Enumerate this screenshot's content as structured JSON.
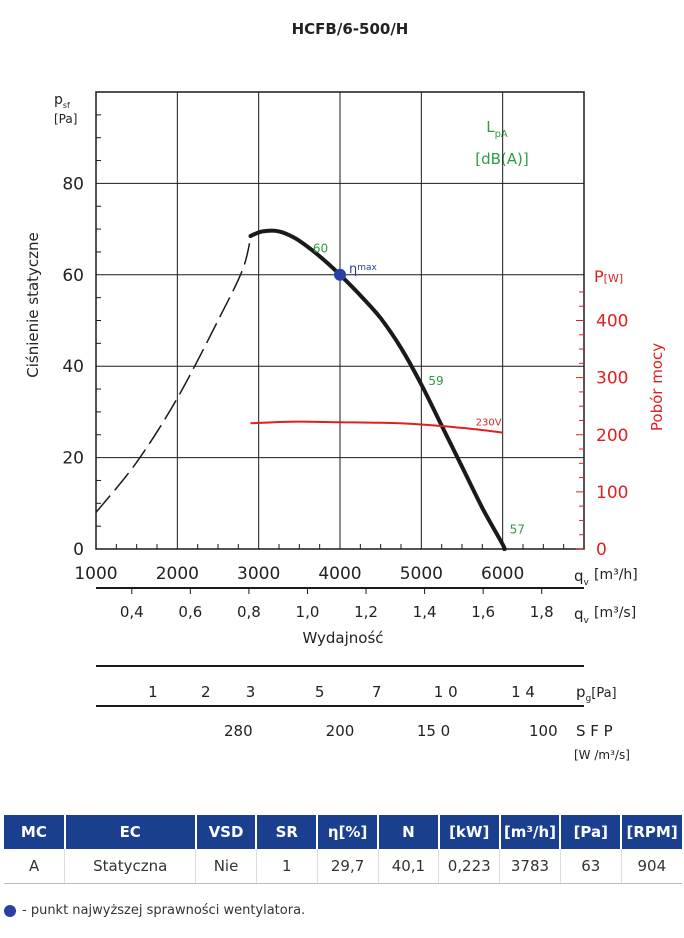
{
  "chart_data": {
    "type": "line",
    "title": "HCFB/6-500/H",
    "ylabel": "Ciśnienie statyczne",
    "y_symbol": "p",
    "y_symbol_sub": "sf",
    "y_unit": "[Pa]",
    "y_right_label": "Pobór mocy",
    "y_right_symbol": "P",
    "y_right_unit": "[W]",
    "xlabel": "Wydajność",
    "x_symbol": "q",
    "x_symbol_sub": "v",
    "x_unit": "[m³/h]",
    "x_unit2": "[m³/s]",
    "xlim": [
      1000,
      7000
    ],
    "ylim": [
      0,
      100
    ],
    "y2lim": [
      0,
      800
    ],
    "x_ticks": [
      1000,
      2000,
      3000,
      4000,
      5000,
      6000
    ],
    "y_ticks": [
      0,
      20,
      40,
      60,
      80
    ],
    "y2_ticks": [
      0,
      100,
      200,
      300,
      400
    ],
    "x2_ticks": [
      "0,4",
      "0,6",
      "0,8",
      "1,0",
      "1,2",
      "1,4",
      "1,6",
      "1,8"
    ],
    "x2_values": [
      0.4,
      0.6,
      0.8,
      1.0,
      1.2,
      1.4,
      1.6,
      1.8
    ],
    "lpa_label": "L",
    "lpa_sub": "pA",
    "lpa_unit": "[dB(A)]",
    "pressure_curve_stalled": {
      "x": [
        1000,
        1500,
        2000,
        2500,
        2800,
        2900
      ],
      "y": [
        8,
        19,
        33,
        50,
        61,
        68
      ]
    },
    "pressure_curve": {
      "x": [
        2900,
        3050,
        3250,
        3450,
        3650,
        3850,
        4000,
        4250,
        4500,
        4750,
        5000,
        5250,
        5500,
        5750,
        6000,
        6020
      ],
      "y": [
        68.5,
        69.5,
        69.5,
        68,
        65.5,
        62.5,
        60,
        55.5,
        50.5,
        44,
        36,
        27,
        18,
        9,
        1,
        0
      ]
    },
    "power_curve": {
      "label": "230V",
      "x": [
        2900,
        3200,
        3500,
        4000,
        4500,
        5000,
        5500,
        6000
      ],
      "y": [
        220,
        222,
        223,
        222,
        221,
        218,
        212,
        204
      ]
    },
    "eta_max": {
      "x": 4000,
      "y": 60,
      "label": "η",
      "sub": "max"
    },
    "lpa_points": [
      {
        "x": 3900,
        "y": 66,
        "label": "60"
      },
      {
        "x": 5000,
        "y": 37,
        "label": "59"
      },
      {
        "x": 6000,
        "y": 4.5,
        "label": "57"
      }
    ],
    "pg_label": "p",
    "pg_sub": "g",
    "pg_unit": "[Pa]",
    "pg_ticks": [
      {
        "q": 1700,
        "label": "1"
      },
      {
        "q": 2350,
        "label": "2"
      },
      {
        "q": 2900,
        "label": "3"
      },
      {
        "q": 3750,
        "label": "5"
      },
      {
        "q": 4450,
        "label": "7"
      },
      {
        "q": 5300,
        "label": "1 0"
      },
      {
        "q": 6250,
        "label": "1 4"
      }
    ],
    "sfp_label": "S F P",
    "sfp_unit": "[W /m³/s]",
    "sfp_ticks": [
      {
        "q": 2750,
        "label": "280"
      },
      {
        "q": 4000,
        "label": "200"
      },
      {
        "q": 5150,
        "label": "15 0"
      },
      {
        "q": 6500,
        "label": "100"
      }
    ]
  },
  "table": {
    "headers": [
      "MC",
      "EC",
      "VSD",
      "SR",
      "η[%]",
      "N",
      "[kW]",
      "[m³/h]",
      "[Pa]",
      "[RPM]"
    ],
    "row": [
      "A",
      "Statyczna",
      "Nie",
      "1",
      "29,7",
      "40,1",
      "0,223",
      "3783",
      "63",
      "904"
    ]
  },
  "legend": {
    "text": "- punkt najwyższej sprawności wentylatora.",
    "dot_color": "#2a3fa0"
  },
  "colors": {
    "pressure": "#1a1a1a",
    "power": "#e02020",
    "lpa": "#2e9a48",
    "eta": "#2a3fa0",
    "header_bg": "#1b3f8f"
  }
}
